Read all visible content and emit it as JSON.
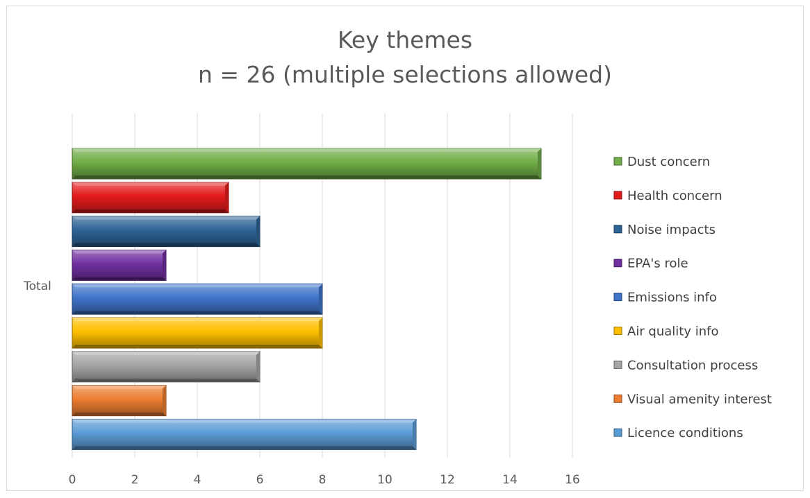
{
  "chart_data": {
    "type": "bar",
    "orientation": "horizontal",
    "title": "Key themes",
    "subtitle": "n = 26 (multiple selections allowed)",
    "categories": [
      "Total"
    ],
    "xlim": [
      0,
      16
    ],
    "xticks": [
      0,
      2,
      4,
      6,
      8,
      10,
      12,
      14,
      16
    ],
    "grid": "vertical",
    "legend_position": "right",
    "series": [
      {
        "name": "Dust concern",
        "values": [
          15
        ],
        "color": "#70ad47"
      },
      {
        "name": "Health concern",
        "values": [
          5
        ],
        "color": "#e31b1b"
      },
      {
        "name": "Noise impacts",
        "values": [
          6
        ],
        "color": "#2e6496"
      },
      {
        "name": "EPA's role",
        "values": [
          3
        ],
        "color": "#7030a0"
      },
      {
        "name": "Emissions info",
        "values": [
          8
        ],
        "color": "#3f74c9"
      },
      {
        "name": "Air quality info",
        "values": [
          8
        ],
        "color": "#ffc000"
      },
      {
        "name": "Consultation process",
        "values": [
          6
        ],
        "color": "#a5a5a5"
      },
      {
        "name": "Visual amenity interest",
        "values": [
          3
        ],
        "color": "#ed7d31"
      },
      {
        "name": "Licence conditions",
        "values": [
          11
        ],
        "color": "#5b9bd5"
      }
    ]
  }
}
